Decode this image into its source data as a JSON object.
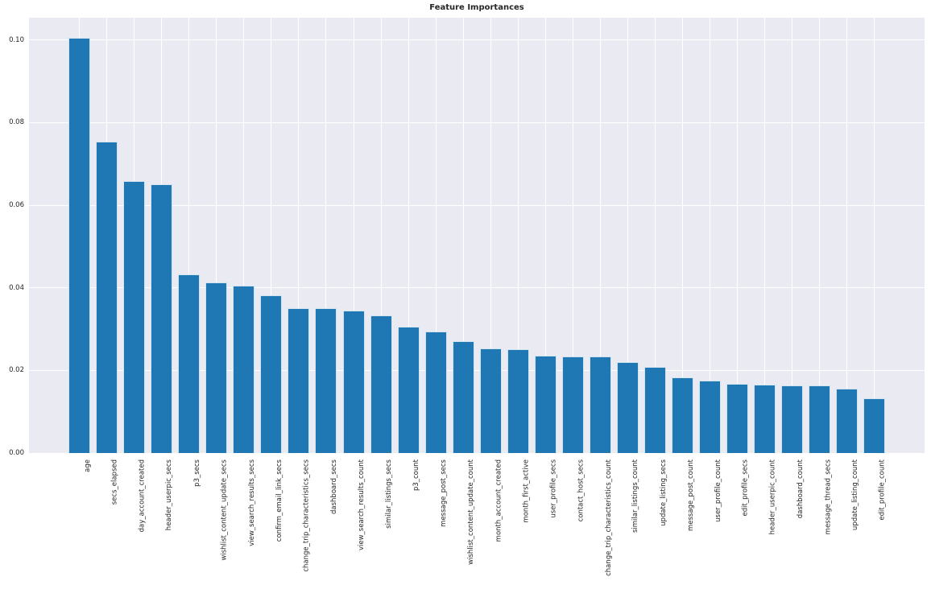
{
  "chart_data": {
    "type": "bar",
    "title": "Feature Importances",
    "categories": [
      "age",
      "secs_elapsed",
      "day_account_created",
      "header_userpic_secs",
      "p3_secs",
      "wishlist_content_update_secs",
      "view_search_results_secs",
      "confirm_email_link_secs",
      "change_trip_characteristics_secs",
      "dashboard_secs",
      "view_search_results_count",
      "similar_listings_secs",
      "p3_count",
      "message_post_secs",
      "wishlist_content_update_count",
      "month_account_created",
      "month_first_active",
      "user_profile_secs",
      "contact_host_secs",
      "change_trip_characteristics_count",
      "similar_listings_count",
      "update_listing_secs",
      "message_post_count",
      "user_profile_count",
      "edit_profile_secs",
      "header_userpic_count",
      "dashboard_count",
      "message_thread_secs",
      "update_listing_count",
      "edit_profile_count"
    ],
    "values": [
      0.1005,
      0.0753,
      0.0658,
      0.065,
      0.0433,
      0.0414,
      0.0406,
      0.0381,
      0.035,
      0.035,
      0.0344,
      0.0334,
      0.0305,
      0.0294,
      0.0271,
      0.0253,
      0.0251,
      0.0236,
      0.0234,
      0.0234,
      0.0221,
      0.0209,
      0.0183,
      0.0176,
      0.0168,
      0.0165,
      0.0163,
      0.0163,
      0.0156,
      0.0132
    ],
    "xlabel": "",
    "ylabel": "",
    "ylim": [
      0,
      0.1054
    ],
    "ytick_labels": [
      "0.00",
      "0.02",
      "0.04",
      "0.06",
      "0.08",
      "0.10"
    ],
    "yticks": [
      0.0,
      0.02,
      0.04,
      0.06,
      0.08,
      0.1
    ],
    "grid": true,
    "legend": false,
    "xtick_rotation": 90,
    "colors": {
      "bar": "#1f77b4",
      "plot_background": "#eaeaf2",
      "grid": "#ffffff",
      "text": "#262626",
      "page_background": "#ffffff"
    }
  }
}
